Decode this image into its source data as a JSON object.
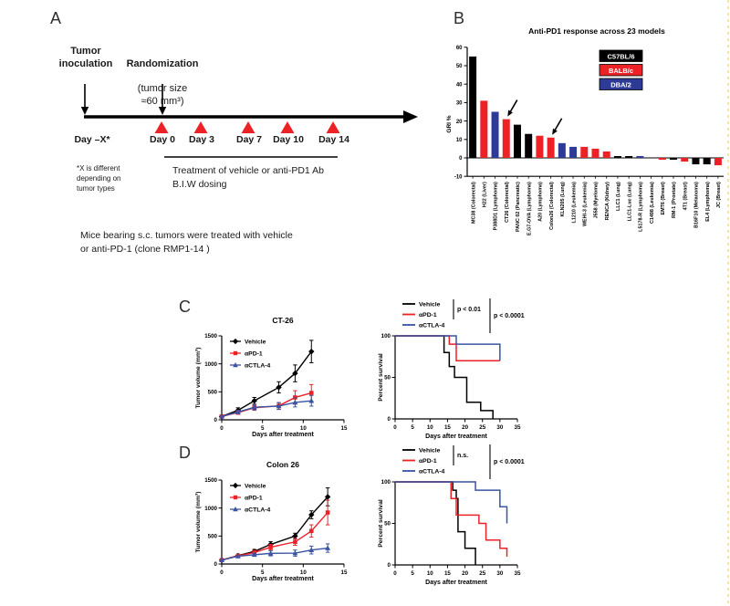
{
  "colors": {
    "black": "#000000",
    "red": "#EC2227",
    "blue_bar": "#2E3A97",
    "blue_line": "#3A53A4",
    "page_border": "#F0E6AC"
  },
  "panels": {
    "a": {
      "label": "A",
      "inoculation": "Tumor\ninoculation",
      "randomization_title": "Randomization",
      "randomization_sub": "(tumor size\n≈60 mm³)",
      "day_labels": [
        "Day –X*",
        "Day 0",
        "Day 3",
        "Day 7",
        "Day 10",
        "Day 14"
      ],
      "footnote": "*X is different\ndepending on\ntumor types",
      "treatment": "Treatment of vehicle or anti-PD1 Ab\nB.I.W dosing",
      "caption": "Mice bearing s.c. tumors were treated with vehicle\nor anti-PD-1 (clone RMP1-14 )"
    },
    "b": {
      "label": "B"
    },
    "c": {
      "label": "C"
    },
    "d": {
      "label": "D"
    }
  },
  "chart_data": [
    {
      "id": "antipd1-bar",
      "type": "bar",
      "title": "Anti-PD1 response across 23 models",
      "ylabel": "GRI %",
      "ylim": [
        -10,
        60
      ],
      "yticks": [
        -10,
        0,
        10,
        20,
        30,
        40,
        50,
        60
      ],
      "legend": [
        {
          "label": "C57BL/6",
          "color": "#000000"
        },
        {
          "label": "BALB/c",
          "color": "#EC2227"
        },
        {
          "label": "DBA/2",
          "color": "#2E3A97"
        }
      ],
      "categories": [
        "MC38 (Colorectal)",
        "H22 (Liver)",
        "P388D1 (Lymphoma)",
        "CT26 (Colorectal)",
        "PANC 02 (Pancreatic)",
        "E.G7-OVA (Lymphoma)",
        "A20 (Lymphoma)",
        "Colon26 (Colorectal)",
        "KLN205 (Lung)",
        "L1210 (Leukemia)",
        "WEHI-3 (Leukemia)",
        "J558 (Myeloma)",
        "RENCA (Kidney)",
        "LLC1 (Lung)",
        "LLC1-Luc (Lung)",
        "L5178-R (Lymphoma)",
        "C1498 (Leukemia)",
        "EMT6 (Breast)",
        "RM-1 (Prostate)",
        "4T1 (Breast)",
        "B16F10 (Melanoma)",
        "EL4 (Lymphoma)",
        "JC (Breast)"
      ],
      "values": [
        55,
        31,
        25,
        21,
        18,
        13,
        12,
        11,
        8,
        6,
        6,
        5,
        3.5,
        1,
        1,
        1,
        0,
        -1,
        -1,
        -2,
        -3.5,
        -3.5,
        -4
      ],
      "strains": [
        "C57BL/6",
        "BALB/c",
        "DBA/2",
        "BALB/c",
        "C57BL/6",
        "C57BL/6",
        "BALB/c",
        "BALB/c",
        "DBA/2",
        "DBA/2",
        "BALB/c",
        "BALB/c",
        "BALB/c",
        "C57BL/6",
        "C57BL/6",
        "DBA/2",
        "C57BL/6",
        "BALB/c",
        "C57BL/6",
        "BALB/c",
        "C57BL/6",
        "C57BL/6",
        "BALB/c"
      ],
      "arrow_indices": [
        3,
        7
      ]
    },
    {
      "id": "ct26-volume",
      "type": "line",
      "title": "CT-26",
      "xlabel": "Days after treatment",
      "ylabel": "Tumor volume (mm³)",
      "xlim": [
        0,
        15
      ],
      "xticks": [
        0,
        5,
        10,
        15
      ],
      "ylim": [
        0,
        1500
      ],
      "yticks": [
        0,
        500,
        1000,
        1500
      ],
      "x": [
        0,
        2,
        4,
        7,
        9,
        11
      ],
      "series": [
        {
          "name": "Vehicle",
          "marker": "diamond",
          "color": "#000000",
          "values": [
            60,
            170,
            340,
            580,
            830,
            1220
          ],
          "errors": [
            25,
            45,
            60,
            100,
            150,
            200
          ]
        },
        {
          "name": "αPD-1",
          "marker": "square",
          "color": "#EC2227",
          "values": [
            60,
            130,
            215,
            250,
            400,
            480
          ],
          "errors": [
            20,
            30,
            45,
            60,
            120,
            150
          ]
        },
        {
          "name": "αCTLA-4",
          "marker": "triangle",
          "color": "#3A53A4",
          "values": [
            60,
            140,
            225,
            245,
            310,
            340
          ],
          "errors": [
            20,
            30,
            50,
            60,
            80,
            95
          ]
        }
      ]
    },
    {
      "id": "ct26-survival",
      "type": "step",
      "xlabel": "Days after treatment",
      "ylabel": "Percent survival",
      "xlim": [
        0,
        35
      ],
      "xticks": [
        0,
        5,
        10,
        15,
        20,
        25,
        30,
        35
      ],
      "ylim": [
        0,
        100
      ],
      "yticks": [
        0,
        50,
        100
      ],
      "annotations": [
        "p < 0.01",
        "p < 0.0001"
      ],
      "series": [
        {
          "name": "Vehicle",
          "color": "#000000",
          "points": [
            [
              0,
              100
            ],
            [
              14,
              100
            ],
            [
              14,
              80
            ],
            [
              15.5,
              80
            ],
            [
              15.5,
              63
            ],
            [
              17,
              63
            ],
            [
              17,
              50
            ],
            [
              20.5,
              50
            ],
            [
              20.5,
              20
            ],
            [
              24.5,
              20
            ],
            [
              24.5,
              10
            ],
            [
              28,
              10
            ],
            [
              28,
              0
            ]
          ]
        },
        {
          "name": "αPD-1",
          "color": "#EC2227",
          "points": [
            [
              0,
              100
            ],
            [
              15.5,
              100
            ],
            [
              15.5,
              90
            ],
            [
              17.5,
              90
            ],
            [
              17.5,
              70
            ],
            [
              30,
              70
            ]
          ]
        },
        {
          "name": "αCTLA-4",
          "color": "#3A53A4",
          "points": [
            [
              0,
              100
            ],
            [
              17.5,
              100
            ],
            [
              17.5,
              90
            ],
            [
              30,
              90
            ],
            [
              30,
              70
            ]
          ]
        }
      ]
    },
    {
      "id": "colon26-volume",
      "type": "line",
      "title": "Colon 26",
      "xlabel": "Days after treatment",
      "ylabel": "Tumor volume (mm³)",
      "xlim": [
        0,
        15
      ],
      "xticks": [
        0,
        5,
        10,
        15
      ],
      "ylim": [
        0,
        1500
      ],
      "yticks": [
        0,
        500,
        1000,
        1500
      ],
      "x": [
        0,
        2,
        4,
        6,
        9,
        11,
        13
      ],
      "series": [
        {
          "name": "Vehicle",
          "marker": "diamond",
          "color": "#000000",
          "values": [
            70,
            150,
            225,
            350,
            500,
            880,
            1200
          ],
          "errors": [
            20,
            25,
            35,
            50,
            50,
            70,
            160
          ]
        },
        {
          "name": "αPD-1",
          "marker": "square",
          "color": "#EC2227",
          "values": [
            70,
            145,
            205,
            300,
            395,
            590,
            920
          ],
          "errors": [
            20,
            25,
            35,
            50,
            60,
            110,
            220
          ]
        },
        {
          "name": "αCTLA-4",
          "marker": "triangle",
          "color": "#3A53A4",
          "values": [
            70,
            140,
            165,
            190,
            195,
            250,
            285
          ],
          "errors": [
            15,
            20,
            25,
            45,
            55,
            70,
            75
          ]
        }
      ]
    },
    {
      "id": "colon26-survival",
      "type": "step",
      "xlabel": "Days after treatment",
      "ylabel": "Percent survival",
      "xlim": [
        0,
        35
      ],
      "xticks": [
        0,
        5,
        10,
        15,
        20,
        25,
        30,
        35
      ],
      "ylim": [
        0,
        100
      ],
      "yticks": [
        0,
        50,
        100
      ],
      "annotations": [
        "n.s.",
        "p < 0.0001"
      ],
      "series": [
        {
          "name": "Vehicle",
          "color": "#000000",
          "points": [
            [
              0,
              100
            ],
            [
              16.5,
              100
            ],
            [
              16.5,
              90
            ],
            [
              17.5,
              90
            ],
            [
              17.5,
              80
            ],
            [
              18,
              80
            ],
            [
              18,
              40
            ],
            [
              20,
              40
            ],
            [
              20,
              20
            ],
            [
              23,
              20
            ],
            [
              23,
              0
            ]
          ]
        },
        {
          "name": "αPD-1",
          "color": "#EC2227",
          "points": [
            [
              0,
              100
            ],
            [
              16,
              100
            ],
            [
              16,
              80
            ],
            [
              17.5,
              80
            ],
            [
              17.5,
              60
            ],
            [
              24,
              60
            ],
            [
              24,
              50
            ],
            [
              26,
              50
            ],
            [
              26,
              30
            ],
            [
              30,
              30
            ],
            [
              30,
              20
            ],
            [
              32,
              20
            ],
            [
              32,
              10
            ]
          ]
        },
        {
          "name": "αCTLA-4",
          "color": "#3A53A4",
          "points": [
            [
              0,
              100
            ],
            [
              23,
              100
            ],
            [
              23,
              90
            ],
            [
              30,
              90
            ],
            [
              30,
              70
            ],
            [
              32,
              70
            ],
            [
              32,
              50
            ]
          ]
        }
      ]
    }
  ]
}
